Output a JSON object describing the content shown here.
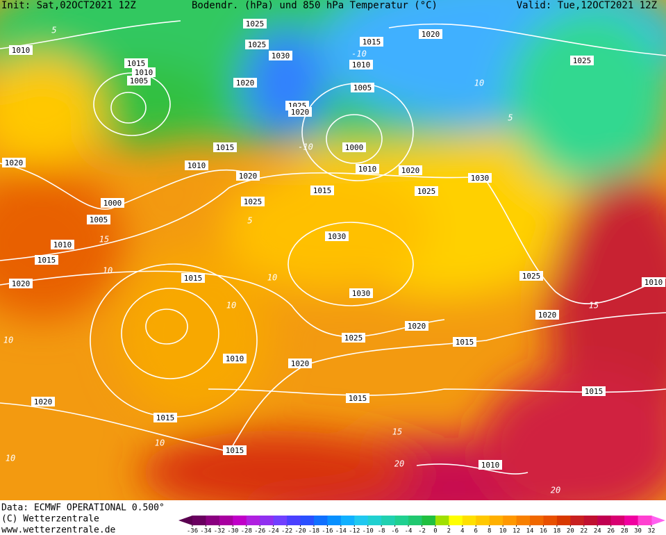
{
  "header": {
    "init": "Init: Sat,02OCT2021 12Z",
    "title": "Bodendr. (hPa) und 850 hPa Temperatur (°C)",
    "valid": "Valid: Tue,12OCT2021 12Z"
  },
  "footer": {
    "data": "Data: ECMWF OPERATIONAL 0.500°",
    "copyright": "(C) Wetterzentrale",
    "url": "www.wetterzentrale.de"
  },
  "scale": {
    "ticks": [
      -36,
      -34,
      -32,
      -30,
      -28,
      -26,
      -24,
      -22,
      -20,
      -18,
      -16,
      -14,
      -12,
      -10,
      -8,
      -6,
      -4,
      -2,
      0,
      2,
      4,
      6,
      8,
      10,
      12,
      14,
      16,
      18,
      20,
      22,
      24,
      26,
      28,
      30,
      32
    ],
    "colors": [
      "#6a0060",
      "#8a0080",
      "#a800a0",
      "#c000c8",
      "#b020e0",
      "#9030f0",
      "#7040ff",
      "#4a40ff",
      "#2a50ff",
      "#1070ff",
      "#0890ff",
      "#10b0ff",
      "#20c8f0",
      "#20d0d0",
      "#20d0b0",
      "#20d090",
      "#20c870",
      "#20c040",
      "#a0e000",
      "#ffff00",
      "#ffe000",
      "#ffc800",
      "#ffb000",
      "#ff9800",
      "#f88000",
      "#f06800",
      "#e85000",
      "#d83800",
      "#c82020",
      "#c01030",
      "#c00050",
      "#d80070",
      "#f000a0",
      "#ff40d0"
    ],
    "under_color": "#5a0050",
    "over_color": "#ff60f0"
  },
  "isobar_labels": [
    1010,
    1025,
    1025,
    1030,
    1015,
    1020,
    1025,
    1015,
    1010,
    1005,
    1020,
    1010,
    1005,
    1025,
    1020,
    1015,
    1000,
    1010,
    1020,
    1020,
    1010,
    1020,
    1030,
    1015,
    1025,
    1000,
    1025,
    1005,
    1030,
    1010,
    1015,
    1025,
    1020,
    1015,
    1010,
    1030,
    1020,
    1020,
    1025,
    1015,
    1010,
    1020,
    1015,
    1015,
    1020,
    1015,
    1015,
    1010
  ],
  "isotherm_labels": [
    5,
    -10,
    10,
    -10,
    5,
    10,
    5,
    10,
    10,
    10,
    15,
    10,
    10,
    15,
    20,
    15,
    20
  ]
}
